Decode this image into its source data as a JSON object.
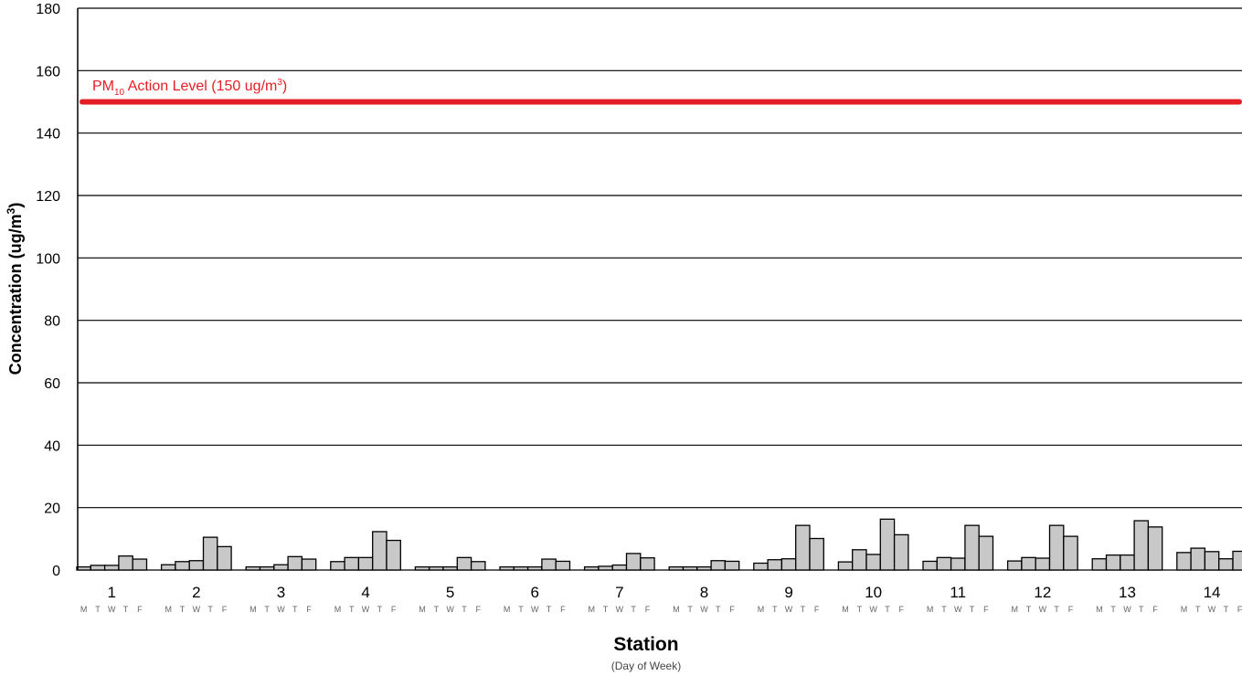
{
  "chart_data": {
    "type": "bar",
    "title": "",
    "xlabel": "Station",
    "xlabel_sub": "(Day of Week)",
    "ylabel": "Concentration (ug/m",
    "ylabel_sup": "3",
    "ylabel_end": ")",
    "ylim": [
      0,
      180
    ],
    "yticks": [
      0,
      20,
      40,
      60,
      80,
      100,
      120,
      140,
      160,
      180
    ],
    "grid": true,
    "days": [
      "M",
      "T",
      "W",
      "T",
      "F"
    ],
    "categories": [
      "1",
      "2",
      "3",
      "4",
      "5",
      "6",
      "7",
      "8",
      "9",
      "10",
      "11",
      "12",
      "13",
      "14"
    ],
    "values": [
      [
        1.0,
        1.5,
        1.5,
        4.5,
        3.5
      ],
      [
        1.7,
        2.7,
        3.0,
        10.5,
        7.5
      ],
      [
        1.0,
        1.0,
        1.7,
        4.3,
        3.5
      ],
      [
        2.7,
        4.0,
        4.0,
        12.3,
        9.5
      ],
      [
        1.0,
        1.0,
        1.0,
        4.0,
        2.7
      ],
      [
        1.0,
        1.0,
        1.0,
        3.5,
        2.8
      ],
      [
        1.0,
        1.2,
        1.6,
        5.3,
        3.9
      ],
      [
        1.0,
        1.0,
        1.0,
        3.0,
        2.8
      ],
      [
        2.2,
        3.3,
        3.6,
        14.3,
        10.1
      ],
      [
        2.6,
        6.5,
        5.0,
        16.3,
        11.3
      ],
      [
        2.8,
        4.0,
        3.8,
        14.3,
        10.8
      ],
      [
        2.9,
        4.0,
        3.8,
        14.3,
        10.8
      ],
      [
        3.6,
        4.8,
        4.8,
        15.8,
        13.8
      ],
      [
        5.6,
        7.0,
        5.9,
        3.6,
        6.0
      ]
    ],
    "bar_color": "#c8c8c8",
    "bar_stroke": "#000000",
    "reference_line": {
      "value": 150,
      "color": "#e41e26",
      "label_pre": "PM",
      "label_sub": "10",
      "label_mid": " Action Level (150 ug/m",
      "label_sup": "3",
      "label_end": ")"
    }
  }
}
